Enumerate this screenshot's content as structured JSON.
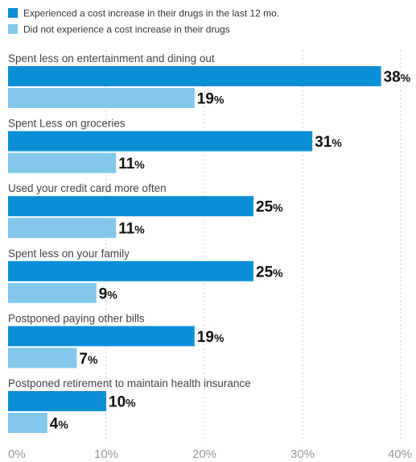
{
  "chart_data": {
    "type": "bar",
    "orientation": "horizontal",
    "legend": [
      {
        "label": "Experienced a cost increase in their drugs in the last 12 mo.",
        "color": "#0a8fd6"
      },
      {
        "label": "Did not experience a cost increase in their drugs",
        "color": "#82c8ea"
      }
    ],
    "categories": [
      "Spent less on entertainment and dining out",
      "Spent Less on groceries",
      "Used your credit card more often",
      "Spent less on your family",
      "Postponed paying other bills",
      "Postponed retirement to maintain health insurance"
    ],
    "series": [
      {
        "name": "Experienced a cost increase in their drugs in the last 12 mo.",
        "color": "#0a8fd6",
        "values": [
          38,
          31,
          25,
          25,
          19,
          10
        ]
      },
      {
        "name": "Did not experience a cost increase in their drugs",
        "color": "#82c8ea",
        "values": [
          19,
          11,
          11,
          9,
          7,
          4
        ]
      }
    ],
    "value_suffix": "%",
    "xlim": [
      0,
      40
    ],
    "xticks": [
      "0%",
      "10%",
      "20%",
      "30%",
      "40%"
    ],
    "grid": true,
    "legend_placement": "top-left"
  }
}
